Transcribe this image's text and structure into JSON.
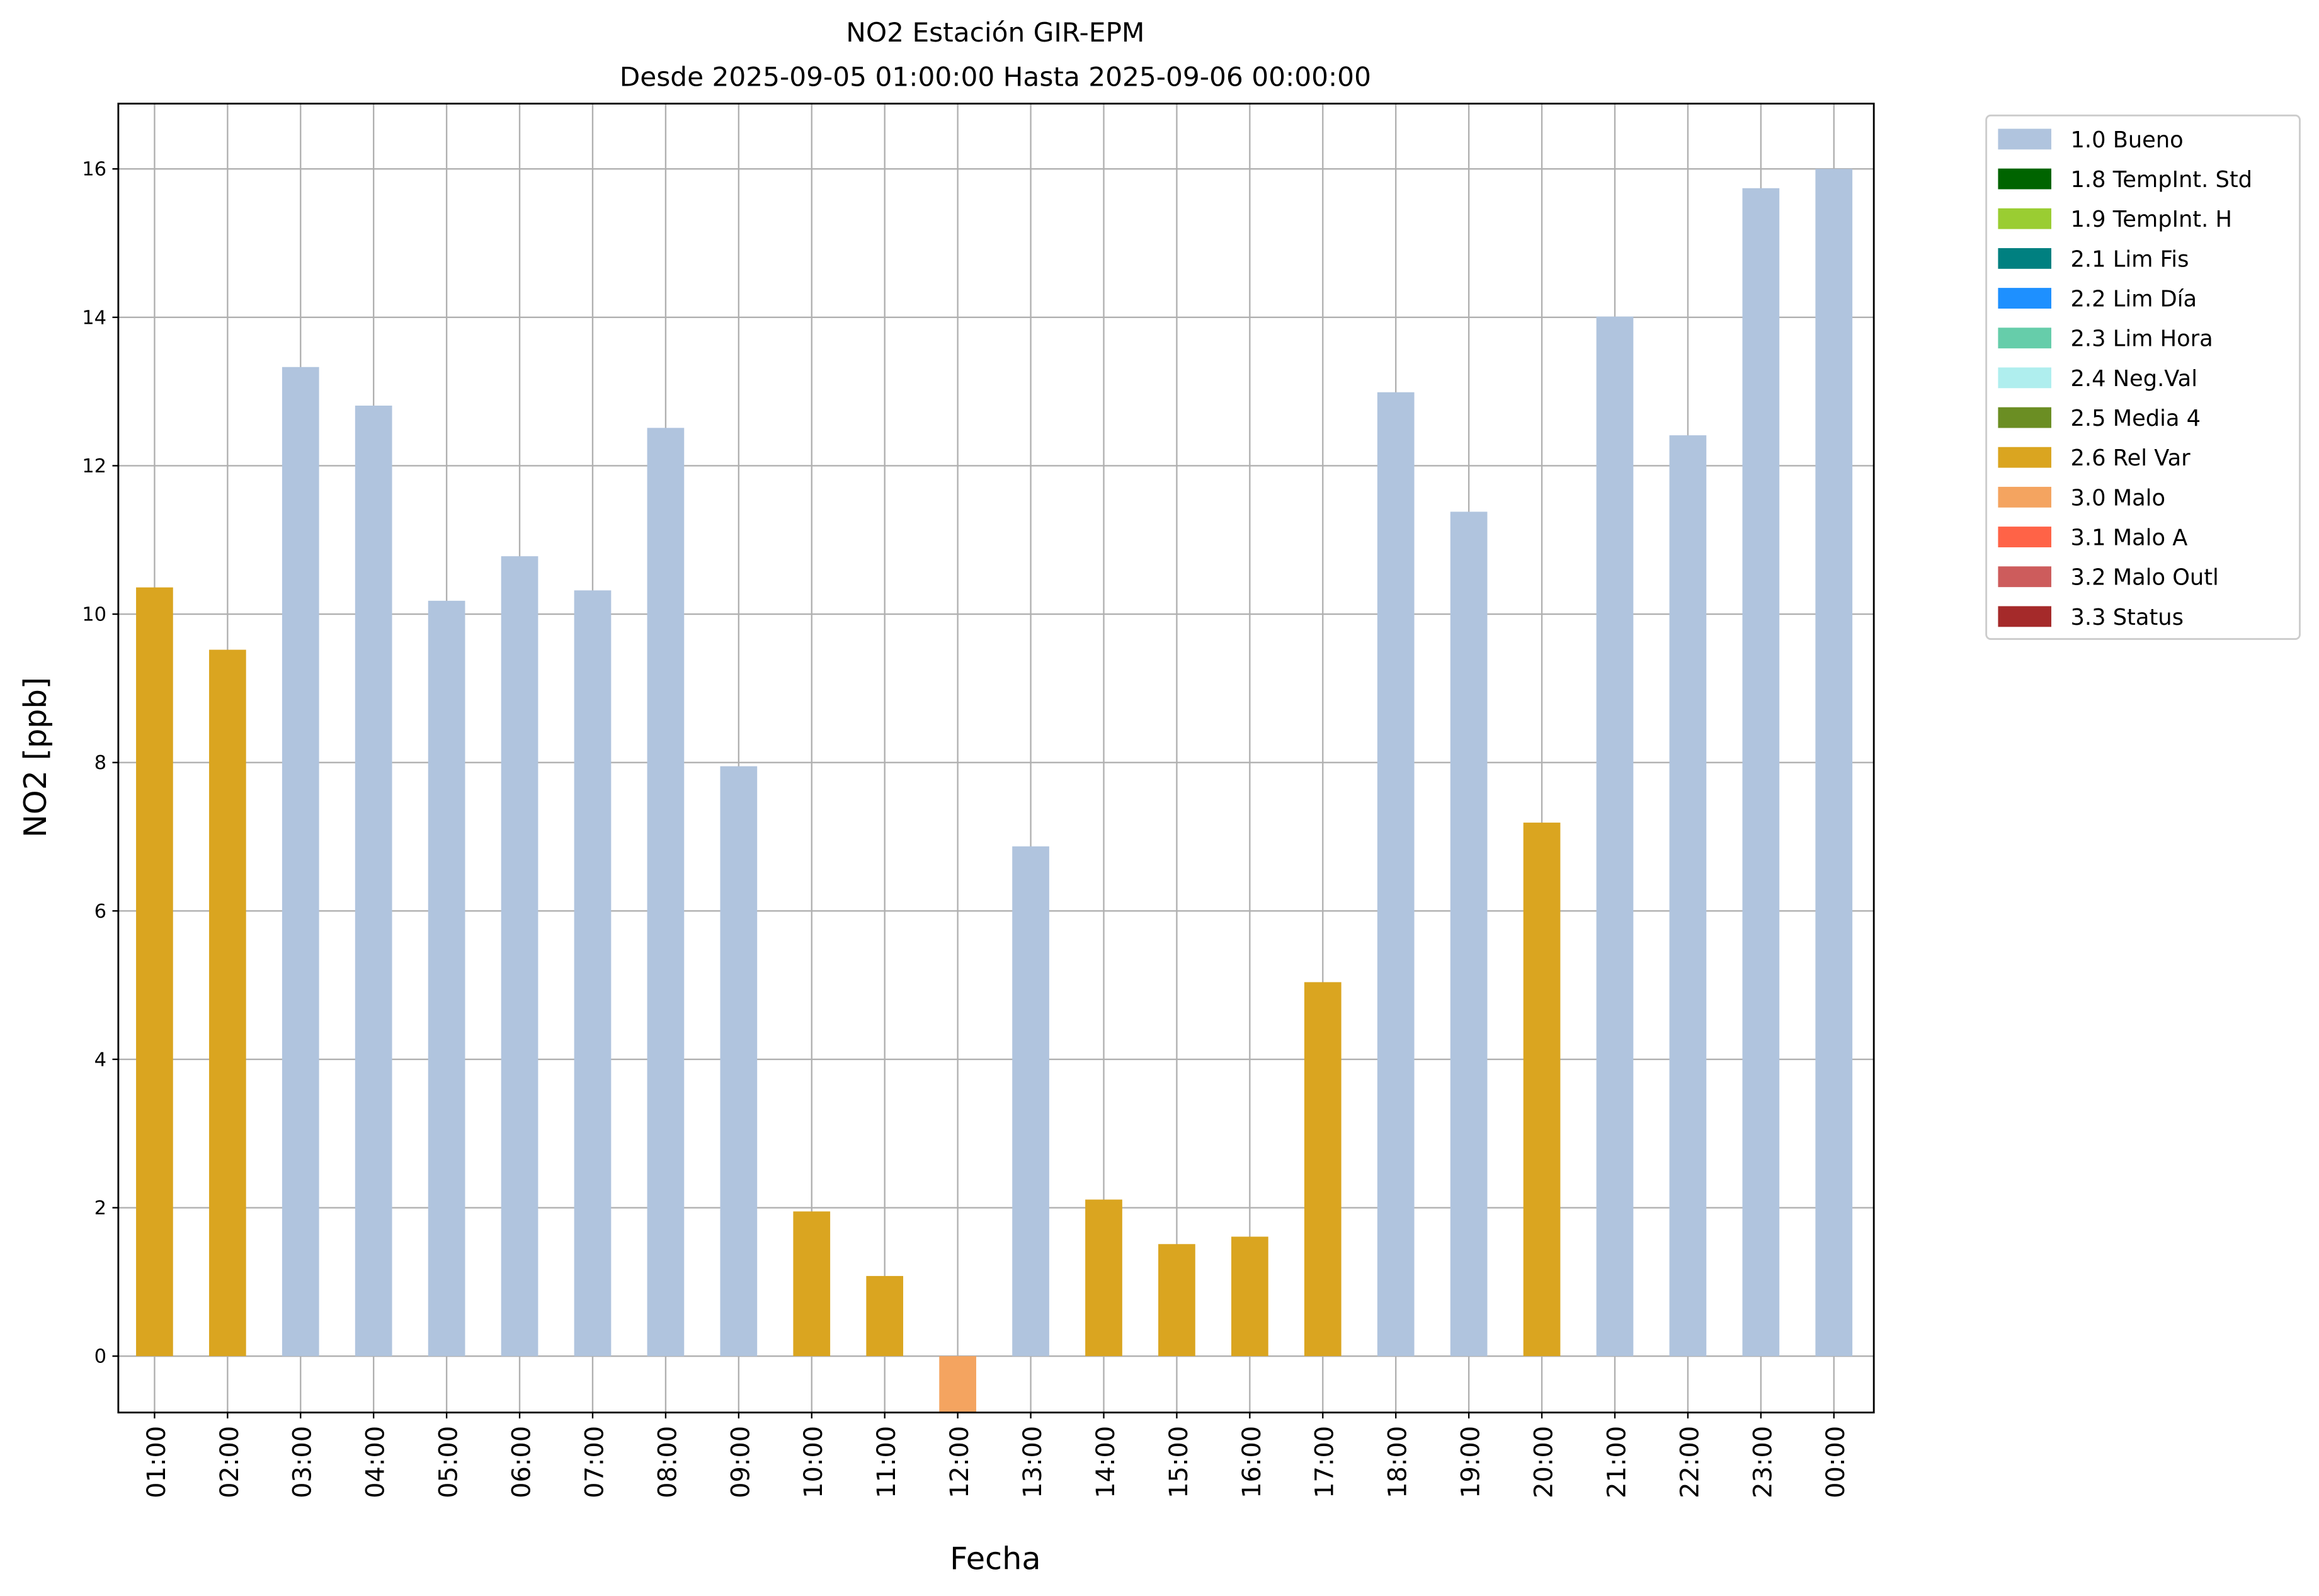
{
  "chart_data": {
    "type": "bar",
    "title": "NO2 Estación GIR-EPM",
    "subtitle": "Desde 2025-09-05 01:00:00 Hasta 2025-09-06 00:00:00",
    "xlabel": "Fecha",
    "ylabel": "NO2 [ppb]",
    "ylim": [
      -0.76,
      16.88
    ],
    "yticks": [
      0,
      2,
      4,
      6,
      8,
      10,
      12,
      14,
      16
    ],
    "grid": true,
    "legend_position": "outside-top-right",
    "categories": [
      "01:00",
      "02:00",
      "03:00",
      "04:00",
      "05:00",
      "06:00",
      "07:00",
      "08:00",
      "09:00",
      "10:00",
      "11:00",
      "12:00",
      "13:00",
      "14:00",
      "15:00",
      "16:00",
      "17:00",
      "18:00",
      "19:00",
      "20:00",
      "21:00",
      "22:00",
      "23:00",
      "00:00"
    ],
    "values": [
      10.36,
      9.52,
      13.33,
      12.81,
      10.18,
      10.78,
      10.32,
      12.51,
      7.95,
      1.95,
      1.08,
      -0.76,
      6.87,
      2.11,
      1.51,
      1.61,
      5.04,
      12.99,
      11.38,
      7.19,
      14.01,
      12.41,
      15.74,
      16.0
    ],
    "flags": [
      "2.6 Rel Var",
      "2.6 Rel Var",
      "1.0 Bueno",
      "1.0 Bueno",
      "1.0 Bueno",
      "1.0 Bueno",
      "1.0 Bueno",
      "1.0 Bueno",
      "1.0 Bueno",
      "2.6 Rel Var",
      "2.6 Rel Var",
      "3.0 Malo",
      "1.0 Bueno",
      "2.6 Rel Var",
      "2.6 Rel Var",
      "2.6 Rel Var",
      "2.6 Rel Var",
      "1.0 Bueno",
      "1.0 Bueno",
      "2.6 Rel Var",
      "1.0 Bueno",
      "1.0 Bueno",
      "1.0 Bueno",
      "1.0 Bueno"
    ],
    "legend": [
      {
        "label": "1.0 Bueno",
        "color": "#B0C4DE"
      },
      {
        "label": "1.8 TempInt. Std",
        "color": "#006400"
      },
      {
        "label": "1.9 TempInt. H",
        "color": "#9ACD32"
      },
      {
        "label": "2.1 Lim Fis",
        "color": "#008080"
      },
      {
        "label": "2.2 Lim Día",
        "color": "#1E90FF"
      },
      {
        "label": "2.3 Lim Hora",
        "color": "#66CDAA"
      },
      {
        "label": "2.4 Neg.Val",
        "color": "#AFEEEE"
      },
      {
        "label": "2.5 Media 4",
        "color": "#6B8E23"
      },
      {
        "label": "2.6 Rel Var",
        "color": "#DAA520"
      },
      {
        "label": "3.0 Malo",
        "color": "#F4A460"
      },
      {
        "label": "3.1 Malo A",
        "color": "#FF6347"
      },
      {
        "label": "3.2 Malo Outl",
        "color": "#CD5C5C"
      },
      {
        "label": "3.3 Status",
        "color": "#A52A2A"
      }
    ]
  }
}
